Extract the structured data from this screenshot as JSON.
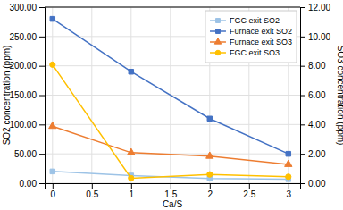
{
  "chart_data": {
    "type": "line",
    "xlabel": "Ca/S",
    "ylabel": "SO2 concentration (ppm)",
    "y2label": "SO3 concentration (ppm)",
    "x": [
      0,
      1,
      2,
      3
    ],
    "xlim": [
      -0.1,
      3.15
    ],
    "xticks": [
      0,
      0.5,
      1,
      1.5,
      2,
      2.5,
      3
    ],
    "ylim": [
      0,
      300
    ],
    "yticks": [
      {
        "value": 0,
        "label": "0.00"
      },
      {
        "value": 50,
        "label": "50.00"
      },
      {
        "value": 100,
        "label": "100.00"
      },
      {
        "value": 150,
        "label": "150.00"
      },
      {
        "value": 200,
        "label": "200.00"
      },
      {
        "value": 250,
        "label": "250.00"
      },
      {
        "value": 300,
        "label": "300.00"
      }
    ],
    "y2lim": [
      0,
      12.0
    ],
    "y2ticks": [
      {
        "value": 0,
        "label": "0.00"
      },
      {
        "value": 2,
        "label": "2.00"
      },
      {
        "value": 4,
        "label": "4.00"
      },
      {
        "value": 6,
        "label": "6.00"
      },
      {
        "value": 8,
        "label": "8.00"
      },
      {
        "value": 10,
        "label": "10.00"
      },
      {
        "value": 12,
        "label": "12.00"
      }
    ],
    "grid": true,
    "legend": "upper right",
    "series": [
      {
        "name": "FGC exit SO2",
        "color": "#9DC3E6",
        "marker": "square",
        "values": [
          20.0,
          13.0,
          8.0,
          7.0
        ]
      },
      {
        "name": "Furnace exit SO2",
        "color": "#4472C4",
        "marker": "square",
        "values": [
          280.0,
          190.0,
          110.0,
          50.0
        ]
      },
      {
        "name": "Furnace exit SO3",
        "color": "#ED7D31",
        "marker": "triangle",
        "axis": "y2",
        "values": [
          3.88,
          2.08,
          1.84,
          1.28
        ]
      },
      {
        "name": "FGC exit SO3",
        "color": "#FFC000",
        "marker": "circle",
        "axis": "y2",
        "values": [
          8.08,
          0.34,
          0.6,
          0.44
        ]
      }
    ]
  }
}
